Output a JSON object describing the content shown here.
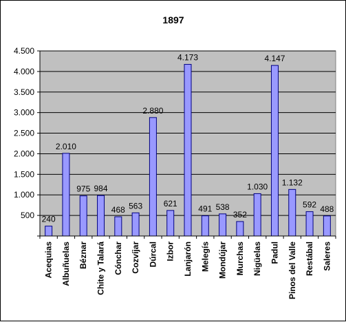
{
  "chart_data": {
    "type": "bar",
    "title": "1897",
    "xlabel": "",
    "ylabel": "",
    "ylim": [
      0,
      4500
    ],
    "ytick_values": [
      0,
      500,
      1000,
      1500,
      2000,
      2500,
      3000,
      3500,
      4000,
      4500
    ],
    "ytick_labels": [
      "",
      "500",
      "1.000",
      "1.500",
      "2.000",
      "2.500",
      "3.000",
      "3.500",
      "4.000",
      "4.500"
    ],
    "categories": [
      "Acequias",
      "Albuñuelas",
      "Béznar",
      "Chite y Talará",
      "Cónchar",
      "Cozvíjar",
      "Dúrcal",
      "Izbor",
      "Lanjarón",
      "Melegís",
      "Mondújar",
      "Murchas",
      "Nigüelas",
      "Padul",
      "Pinos del Valle",
      "Restábal",
      "Saleres"
    ],
    "values": [
      240,
      2010,
      975,
      984,
      468,
      563,
      2880,
      621,
      4173,
      491,
      538,
      352,
      1030,
      4147,
      1132,
      592,
      488
    ],
    "data_labels": [
      "240",
      "2.010",
      "975",
      "984",
      "468",
      "563",
      "2.880",
      "621",
      "4.173",
      "491",
      "538",
      "352",
      "1.030",
      "4.147",
      "1.132",
      "592",
      "488"
    ],
    "grid": true,
    "legend": "none",
    "colors": {
      "plot_background": "#c0c0c0",
      "bar_fill": "#9999ff",
      "bar_stroke": "#000080",
      "gridline": "#000000"
    }
  }
}
